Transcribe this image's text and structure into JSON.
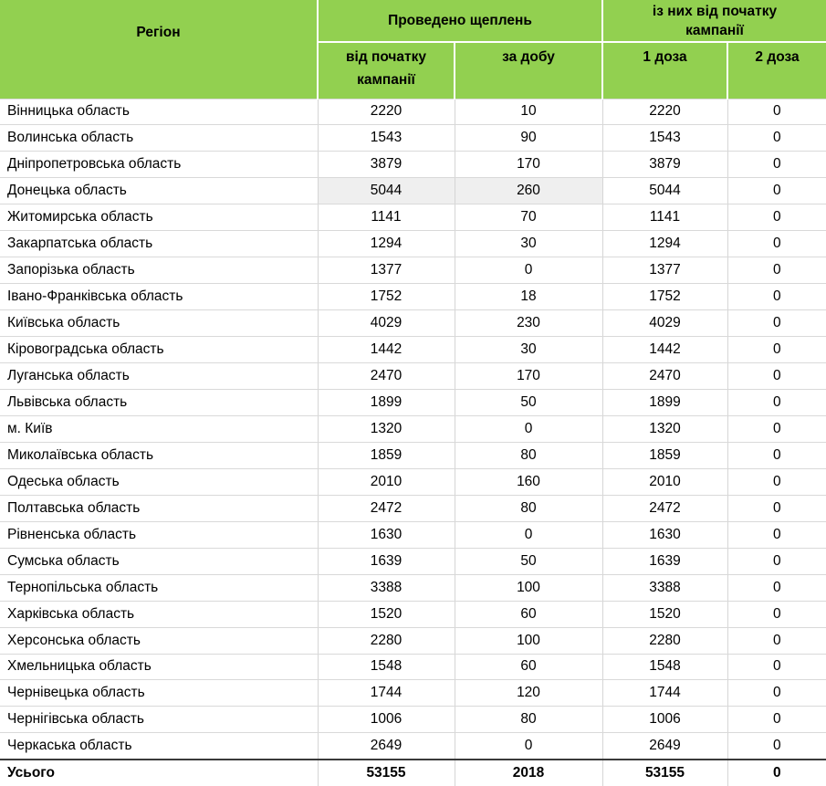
{
  "colors": {
    "header_green": "#92d050",
    "row_line": "#d9d9d9",
    "column_line": "#d5d5d5",
    "total_top_border": "#3a3a3a",
    "highlight_gray": "#efefef",
    "text": "#000000"
  },
  "table": {
    "header": {
      "region_label": "Регіон",
      "groups": [
        {
          "label": "Проведено щеплень",
          "subs": [
            "від початку кампанії",
            "за добу"
          ]
        },
        {
          "label": "із них від початку кампанії",
          "subs": [
            "1 доза",
            "2 доза"
          ]
        }
      ]
    },
    "rows": [
      {
        "region": "Вінницька область",
        "values": [
          "2220",
          "10",
          "2220",
          "0"
        ]
      },
      {
        "region": "Волинська область",
        "values": [
          "1543",
          "90",
          "1543",
          "0"
        ]
      },
      {
        "region": "Дніпропетровська область",
        "values": [
          "3879",
          "170",
          "3879",
          "0"
        ]
      },
      {
        "region": "Донецька область",
        "values": [
          "5044",
          "260",
          "5044",
          "0"
        ],
        "highlight_cells": [
          0,
          1
        ]
      },
      {
        "region": "Житомирська область",
        "values": [
          "1141",
          "70",
          "1141",
          "0"
        ]
      },
      {
        "region": "Закарпатська область",
        "values": [
          "1294",
          "30",
          "1294",
          "0"
        ]
      },
      {
        "region": "Запорізька область",
        "values": [
          "1377",
          "0",
          "1377",
          "0"
        ]
      },
      {
        "region": "Івано-Франківська область",
        "values": [
          "1752",
          "18",
          "1752",
          "0"
        ]
      },
      {
        "region": "Київська область",
        "values": [
          "4029",
          "230",
          "4029",
          "0"
        ]
      },
      {
        "region": "Кіровоградська область",
        "values": [
          "1442",
          "30",
          "1442",
          "0"
        ]
      },
      {
        "region": "Луганська область",
        "values": [
          "2470",
          "170",
          "2470",
          "0"
        ]
      },
      {
        "region": "Львівська область",
        "values": [
          "1899",
          "50",
          "1899",
          "0"
        ]
      },
      {
        "region": "м. Київ",
        "values": [
          "1320",
          "0",
          "1320",
          "0"
        ]
      },
      {
        "region": "Миколаївська область",
        "values": [
          "1859",
          "80",
          "1859",
          "0"
        ]
      },
      {
        "region": "Одеська область",
        "values": [
          "2010",
          "160",
          "2010",
          "0"
        ]
      },
      {
        "region": "Полтавська область",
        "values": [
          "2472",
          "80",
          "2472",
          "0"
        ]
      },
      {
        "region": "Рівненська область",
        "values": [
          "1630",
          "0",
          "1630",
          "0"
        ]
      },
      {
        "region": "Сумська область",
        "values": [
          "1639",
          "50",
          "1639",
          "0"
        ]
      },
      {
        "region": "Тернопільська область",
        "values": [
          "3388",
          "100",
          "3388",
          "0"
        ]
      },
      {
        "region": "Харківська область",
        "values": [
          "1520",
          "60",
          "1520",
          "0"
        ]
      },
      {
        "region": "Херсонська область",
        "values": [
          "2280",
          "100",
          "2280",
          "0"
        ]
      },
      {
        "region": "Хмельницька область",
        "values": [
          "1548",
          "60",
          "1548",
          "0"
        ]
      },
      {
        "region": "Чернівецька область",
        "values": [
          "1744",
          "120",
          "1744",
          "0"
        ]
      },
      {
        "region": "Чернігівська область",
        "values": [
          "1006",
          "80",
          "1006",
          "0"
        ]
      },
      {
        "region": "Черкаська область",
        "values": [
          "2649",
          "0",
          "2649",
          "0"
        ]
      }
    ],
    "total": {
      "region": "Усього",
      "values": [
        "53155",
        "2018",
        "53155",
        "0"
      ]
    }
  }
}
